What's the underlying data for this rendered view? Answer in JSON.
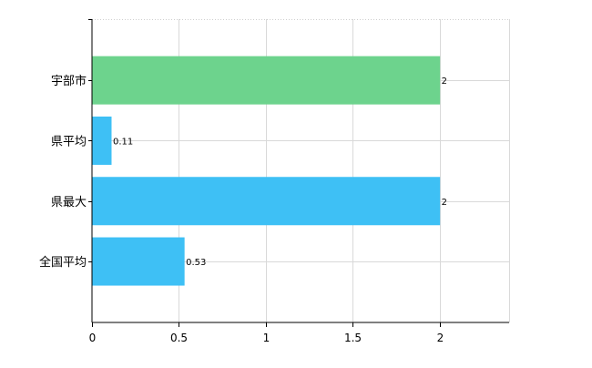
{
  "chart_data": {
    "type": "bar",
    "orientation": "horizontal",
    "categories": [
      "宇部市",
      "県平均",
      "県最大",
      "全国平均"
    ],
    "values": [
      2,
      0.11,
      2,
      0.53
    ],
    "data_labels": [
      "2",
      "0.11",
      "2",
      "0.53"
    ],
    "bar_colors": [
      "#6dd38d",
      "#3ec0f5",
      "#3ec0f5",
      "#3ec0f5"
    ],
    "x_ticks": [
      0,
      0.5,
      1,
      1.5,
      2
    ],
    "x_tick_labels": [
      "0",
      "0.5",
      "1",
      "1.5",
      "2"
    ],
    "xlim": [
      0,
      2.4
    ],
    "grid": true,
    "title": "",
    "xlabel": "",
    "ylabel": ""
  }
}
